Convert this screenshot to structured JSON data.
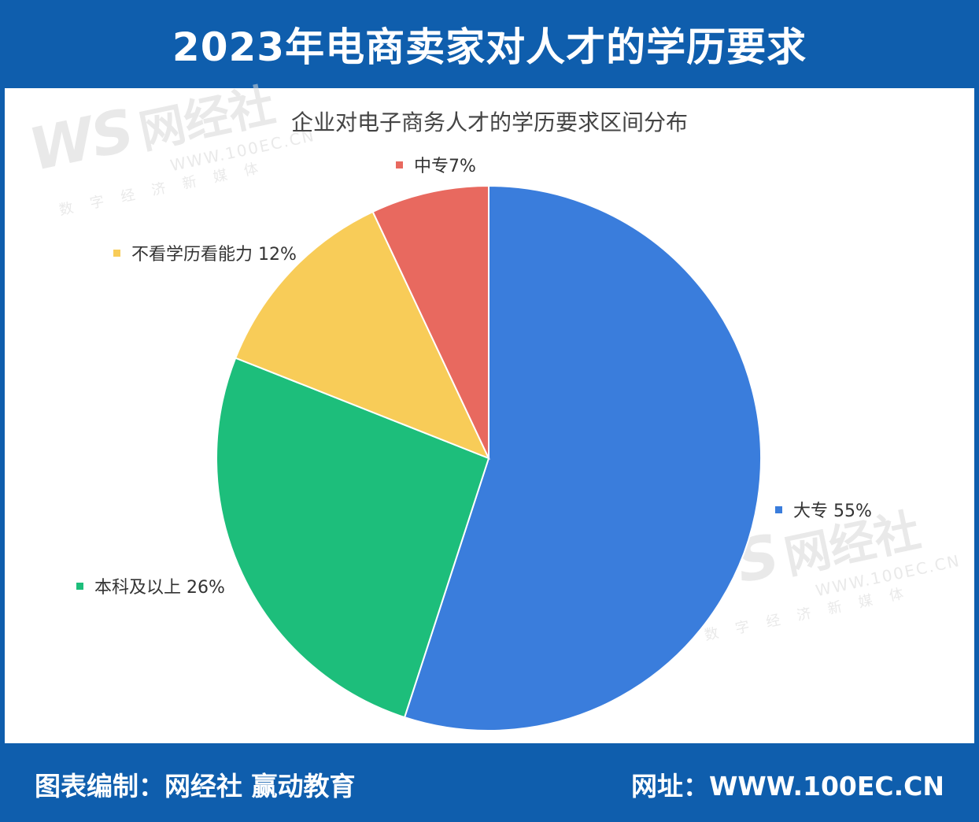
{
  "header": {
    "title": "2023年电商卖家对人才的学历要求"
  },
  "footer": {
    "credit": "图表编制：网经社 赢动教育",
    "website": "网址：WWW.100EC.CN"
  },
  "watermark": {
    "logo": "WS",
    "name": "网经社",
    "url": "WWW.100EC.CN",
    "tagline": "数字经济新媒体"
  },
  "colors": {
    "brand": "#0f5ead",
    "dazhuan": "#3a7ddc",
    "benke": "#1dbe7b",
    "buxue": "#f8cc58",
    "zhongzhuan": "#e8695f"
  },
  "chart_data": {
    "type": "pie",
    "title": "企业对电子商务人才的学历要求区间分布",
    "slices": [
      {
        "label": "大专 55%",
        "name": "大专",
        "value": 55,
        "color": "#3a7ddc"
      },
      {
        "label": "本科及以上 26%",
        "name": "本科及以上",
        "value": 26,
        "color": "#1dbe7b"
      },
      {
        "label": "不看学历看能力 12%",
        "name": "不看学历看能力",
        "value": 12,
        "color": "#f8cc58"
      },
      {
        "label": "中专7%",
        "name": "中专",
        "value": 7,
        "color": "#e8695f"
      }
    ]
  }
}
